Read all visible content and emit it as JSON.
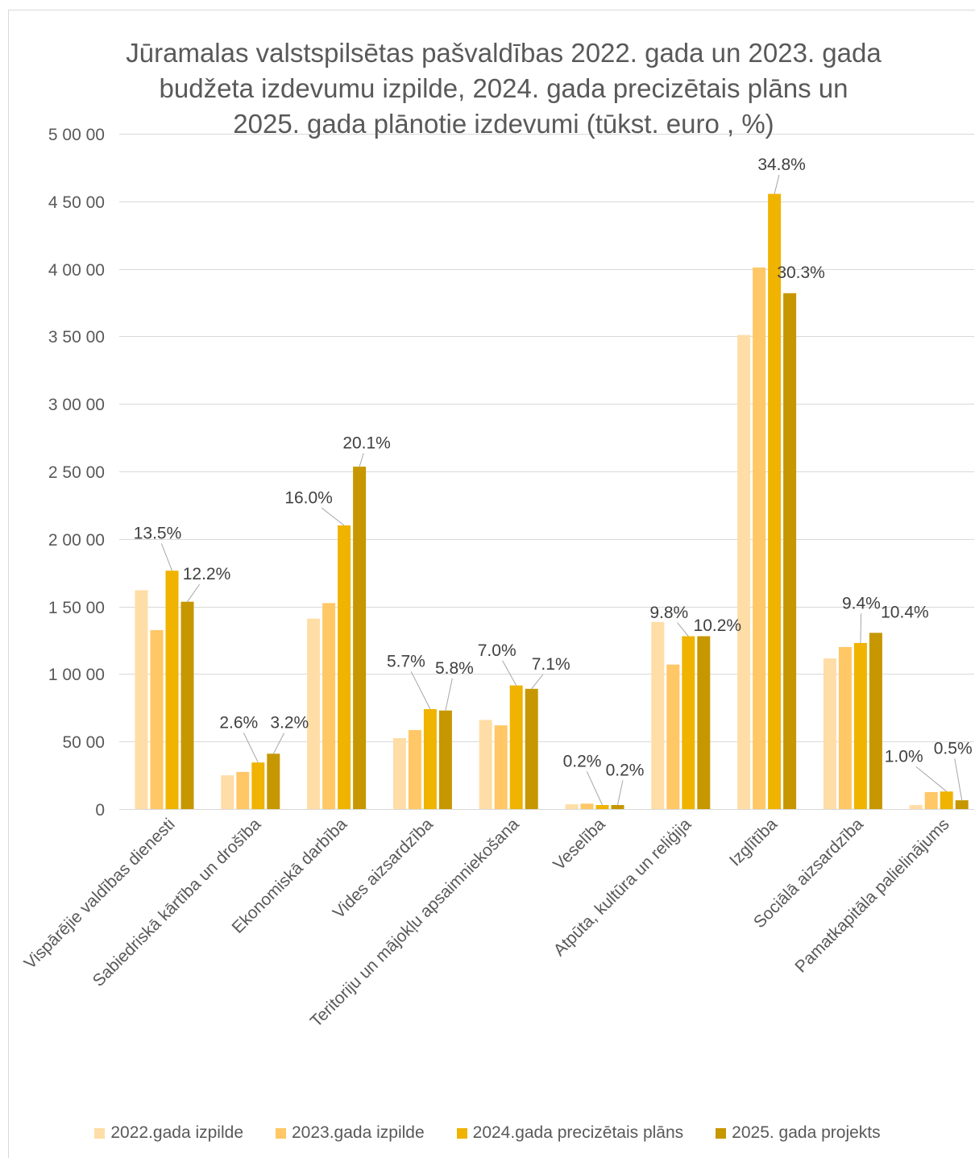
{
  "chart_data": {
    "type": "bar",
    "title": "Jūramalas valstspilsētas pašvaldības 2022. gada un 2023. gada budžeta izdevumu izpilde, 2024. gada precizētais plāns un 2025. gada plānotie izdevumi (tūkst. euro , %)",
    "xlabel": "",
    "ylabel": "",
    "categories": [
      "Vispārējie valdības dienesti",
      "Sabiedriskā kārtība un drošība",
      "Ekonomiskā darbība",
      "Vides aizsardzība",
      "Teritoriju un mājokļu apsaimniekošana",
      "Veselība",
      "Atpūta, kultūra un reliģija",
      "Izglītība",
      "Sociālā aizsardzība",
      "Pamatkapitāla palielinājums"
    ],
    "series": [
      {
        "name": "2022.gada izpilde",
        "color": "#FFDDA6",
        "values": [
          16200,
          2500,
          14100,
          5250,
          6600,
          350,
          13850,
          35100,
          11150,
          300
        ]
      },
      {
        "name": "2023.gada izpilde",
        "color": "#FFC766",
        "values": [
          13250,
          2750,
          15250,
          5850,
          6200,
          400,
          10700,
          40100,
          12000,
          1250
        ]
      },
      {
        "name": "2024.gada precizētais plāns",
        "color": "#EFB300",
        "values": [
          17650,
          3450,
          21000,
          7400,
          9150,
          300,
          12800,
          45550,
          12300,
          1300
        ],
        "data_labels": [
          "13.5%",
          "2.6%",
          "16.0%",
          "5.7%",
          "7.0%",
          "0.2%",
          "9.8%",
          "34.8%",
          "9.4%",
          "1.0%"
        ]
      },
      {
        "name": "2025. gada projekts",
        "color": "#C69700",
        "values": [
          15350,
          4100,
          25350,
          7300,
          8900,
          300,
          12800,
          38200,
          13050,
          650
        ],
        "data_labels": [
          "12.2%",
          "3.2%",
          "20.1%",
          "5.8%",
          "7.1%",
          "0.2%",
          "10.2%",
          "30.3%",
          "10.4%",
          "0.5%"
        ]
      }
    ],
    "ylim": [
      0,
      50000
    ],
    "yticks": [
      0,
      5000,
      10000,
      15000,
      20000,
      25000,
      30000,
      35000,
      40000,
      45000,
      50000
    ],
    "ytick_labels": [
      "0",
      "50 00",
      "1 00 00",
      "1 50 00",
      "2 00 00",
      "2 50 00",
      "3 00 00",
      "3 50 00",
      "4 00 00",
      "4 50 00",
      "5 00 00"
    ],
    "grid": true,
    "legend": "bottom",
    "colors": {
      "text": "#595959",
      "data_label": "#404040",
      "grid": "#D9D9D9",
      "leader": "#A6A6A6"
    }
  }
}
